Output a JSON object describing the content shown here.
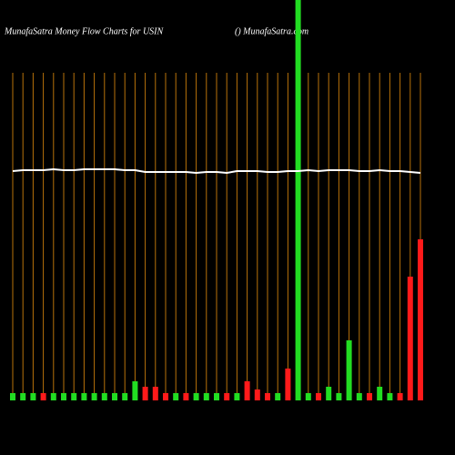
{
  "chart_data": {
    "type": "bar",
    "title": "MunafaSatra  Money Flow  Charts for USIN",
    "subtitle": "() MunafaSatra.com",
    "ylim": [
      0,
      440
    ],
    "series": [
      {
        "name": "money-flow",
        "type": "bar",
        "values": [
          8,
          8,
          8,
          8,
          8,
          8,
          8,
          8,
          8,
          8,
          8,
          8,
          21,
          15,
          15,
          8,
          8,
          8,
          8,
          8,
          8,
          8,
          8,
          21,
          12,
          8,
          8,
          35,
          440,
          8,
          8,
          15,
          8,
          66,
          8,
          8,
          15,
          8,
          8,
          136,
          177
        ],
        "colors": [
          "#22dd22",
          "#22dd22",
          "#22dd22",
          "#ff1a1a",
          "#22dd22",
          "#22dd22",
          "#22dd22",
          "#22dd22",
          "#22dd22",
          "#22dd22",
          "#22dd22",
          "#22dd22",
          "#22dd22",
          "#ff1a1a",
          "#ff1a1a",
          "#ff1a1a",
          "#22dd22",
          "#ff1a1a",
          "#22dd22",
          "#22dd22",
          "#22dd22",
          "#ff1a1a",
          "#22dd22",
          "#ff1a1a",
          "#ff1a1a",
          "#ff1a1a",
          "#22dd22",
          "#ff1a1a",
          "#22dd22",
          "#22dd22",
          "#ff1a1a",
          "#22dd22",
          "#22dd22",
          "#22dd22",
          "#22dd22",
          "#ff1a1a",
          "#22dd22",
          "#22dd22",
          "#ff1a1a",
          "#ff1a1a",
          "#ff1a1a"
        ]
      },
      {
        "name": "price",
        "type": "line",
        "color": "#ffffff",
        "values": [
          252,
          253,
          253,
          253,
          254,
          253,
          253,
          254,
          254,
          254,
          254,
          253,
          253,
          251,
          251,
          251,
          251,
          251,
          250,
          251,
          251,
          250,
          252,
          252,
          252,
          251,
          251,
          252,
          252,
          253,
          252,
          253,
          253,
          253,
          252,
          252,
          253,
          252,
          252,
          251,
          250
        ]
      }
    ]
  }
}
